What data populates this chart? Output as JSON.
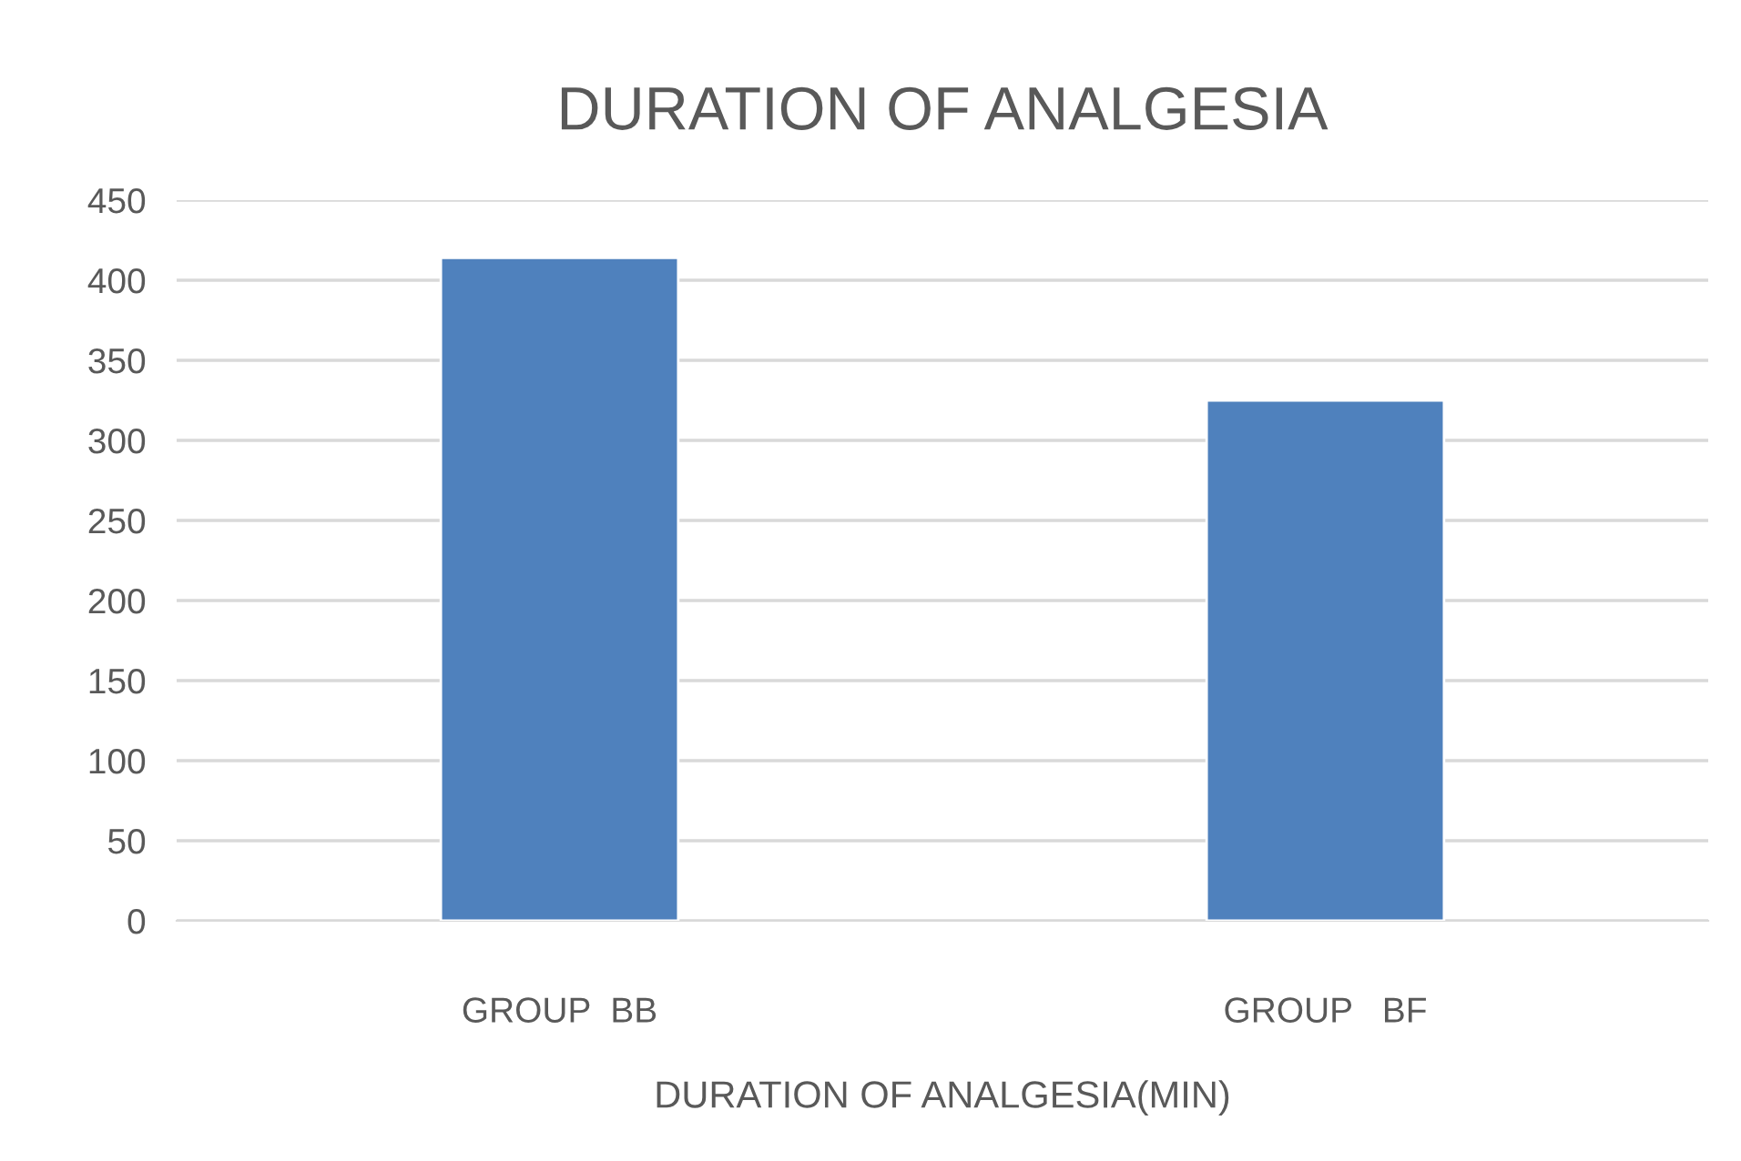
{
  "chart_data": {
    "type": "bar",
    "title": "DURATION OF ANALGESIA",
    "xlabel": "DURATION OF ANALGESIA(MIN)",
    "categories": [
      "GROUP  BB",
      "GROUP   BF"
    ],
    "values": [
      414,
      325
    ],
    "color": "#4f81bd",
    "ylim": [
      0,
      450
    ],
    "yticks": [
      0,
      50,
      100,
      150,
      200,
      250,
      300,
      350,
      400,
      450
    ],
    "grid": "y",
    "legend": false
  }
}
